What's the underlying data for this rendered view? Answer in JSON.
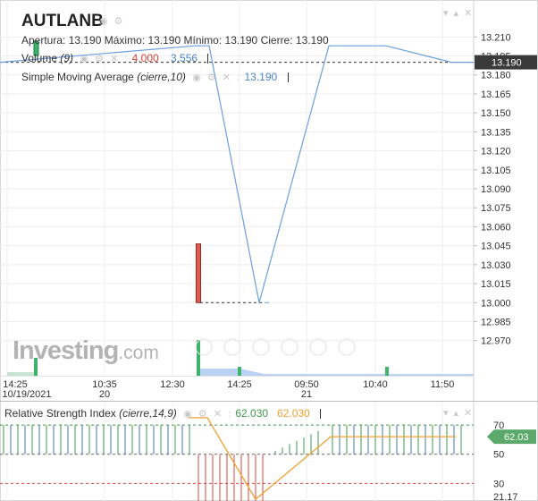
{
  "header": {
    "symbol": "AUTLANB",
    "apertura_label": "Apertura:",
    "apertura_value": "13.190",
    "maximo_label": "Máximo:",
    "maximo_value": "13.190",
    "minimo_label": "Mínimo:",
    "minimo_value": "13.190",
    "cierre_label": "Cierre:",
    "cierre_value": "13.190",
    "volume_label": "Volume",
    "volume_param": "(9)",
    "volume_value_1": "4.000",
    "volume_value_2": "3.556",
    "sma_label": "Simple Moving Average",
    "sma_param": "(cierre,10)",
    "sma_value": "13.190"
  },
  "rsi_header": {
    "label": "Relative Strength Index",
    "param": "(cierre,14,9)",
    "value_1": "62.030",
    "value_2": "62.030"
  },
  "logo": {
    "main": "Investing",
    "suffix": ".com"
  },
  "colors": {
    "price_line": "#6a9fe0",
    "volume_up": "#3db36b",
    "volume_down": "#e05a4e",
    "rsi_line": "#f0a030",
    "rsi_overbought": "#3d9a4a",
    "rsi_oversold": "#d9453c",
    "current_price_bg": "#3a3a3a"
  },
  "chart_data": [
    {
      "type": "line",
      "title": "AUTLANB",
      "series": [
        {
          "name": "Simple Moving Average",
          "x": [
            "14:25",
            "12:30",
            "14:25",
            "15:10",
            "09:50",
            "10:00",
            "10:40",
            "11:50"
          ],
          "values": [
            13.19,
            13.203,
            13.203,
            13.0,
            13.203,
            13.203,
            13.203,
            13.19
          ]
        }
      ],
      "current_price": "13.190",
      "y_ticks": [
        "13.210",
        "13.195",
        "13.180",
        "13.165",
        "13.150",
        "13.135",
        "13.120",
        "13.105",
        "13.090",
        "13.075",
        "13.060",
        "13.045",
        "13.030",
        "13.015",
        "13.000",
        "12.985",
        "12.970"
      ],
      "x_ticks": [
        "14:25",
        "10:35",
        "12:30",
        "14:25",
        "09:50",
        "10:40",
        "11:50"
      ],
      "x_date_ticks": [
        "10/19/2021",
        "20",
        "21"
      ],
      "ylim": [
        12.962,
        13.218
      ],
      "grid": true
    },
    {
      "type": "bar",
      "series": [
        {
          "name": "Volume",
          "x": [
            "14:25",
            "12:30",
            "14:25",
            "10:40"
          ],
          "values": [
            2,
            4,
            1,
            1
          ]
        }
      ]
    },
    {
      "type": "line",
      "title": "Relative Strength Index",
      "series": [
        {
          "name": "RSI",
          "x": [
            "12:30",
            "14:25",
            "15:10",
            "09:50",
            "10:40",
            "11:50"
          ],
          "values": [
            75,
            75,
            0,
            62,
            62,
            62
          ]
        }
      ],
      "levels": [
        70,
        50,
        30
      ],
      "y_ticks": [
        "70",
        "50",
        "30",
        "21.17"
      ],
      "current_value": "62.03",
      "ylim": [
        18,
        78
      ]
    }
  ]
}
